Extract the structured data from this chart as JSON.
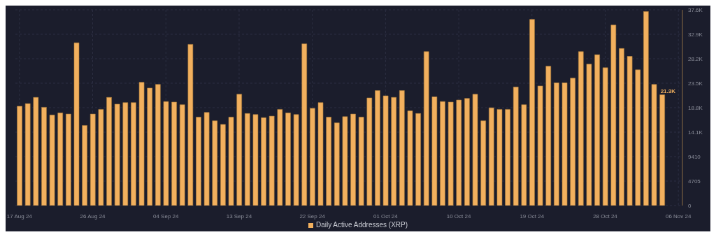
{
  "chart_data": {
    "type": "bar",
    "categories": [
      "17 Aug 24",
      null,
      null,
      null,
      null,
      null,
      null,
      null,
      null,
      "26 Aug 24",
      null,
      null,
      null,
      null,
      null,
      null,
      null,
      null,
      "04 Sep 24",
      null,
      null,
      null,
      null,
      null,
      null,
      null,
      null,
      "13 Sep 24",
      null,
      null,
      null,
      null,
      null,
      null,
      null,
      null,
      "22 Sep 24",
      null,
      null,
      null,
      null,
      null,
      null,
      null,
      null,
      "01 Oct 24",
      null,
      null,
      null,
      null,
      null,
      null,
      null,
      null,
      "10 Oct 24",
      null,
      null,
      null,
      null,
      null,
      null,
      null,
      null,
      "19 Oct 24",
      null,
      null,
      null,
      null,
      null,
      null,
      null,
      null,
      "28 Oct 24",
      null,
      null,
      null,
      null,
      null,
      null,
      null,
      null,
      "06 Nov 24"
    ],
    "series": [
      {
        "name": "Daily Active Addresses (XRP)",
        "color": "#f2b05e",
        "values": [
          19100,
          19600,
          20800,
          18900,
          17400,
          17800,
          17600,
          31300,
          15400,
          17600,
          18500,
          20800,
          19500,
          19800,
          19800,
          23700,
          22600,
          23300,
          20000,
          19900,
          19400,
          31000,
          17000,
          17900,
          16300,
          15600,
          17000,
          21400,
          17700,
          17500,
          16900,
          17200,
          18500,
          17800,
          17500,
          31100,
          18700,
          19800,
          17000,
          15900,
          17100,
          17600,
          17000,
          20700,
          22100,
          21100,
          20800,
          22100,
          18200,
          17700,
          29600,
          20900,
          20000,
          19900,
          20300,
          20600,
          21400,
          16300,
          18800,
          18500,
          18500,
          22800,
          19400,
          35800,
          23000,
          26800,
          23600,
          23600,
          24500,
          29600,
          27200,
          29000,
          26500,
          34700,
          30200,
          28700,
          26100,
          37300,
          23300,
          21300,
          null,
          null
        ],
        "value_labels": [
          null,
          null,
          null,
          null,
          null,
          null,
          null,
          null,
          null,
          null,
          null,
          null,
          null,
          null,
          null,
          null,
          null,
          null,
          null,
          null,
          null,
          null,
          null,
          null,
          null,
          null,
          null,
          null,
          null,
          null,
          null,
          null,
          null,
          null,
          null,
          null,
          null,
          null,
          null,
          null,
          null,
          null,
          null,
          null,
          null,
          null,
          null,
          null,
          null,
          null,
          null,
          null,
          null,
          null,
          null,
          null,
          null,
          null,
          null,
          null,
          null,
          null,
          null,
          null,
          null,
          null,
          null,
          null,
          null,
          null,
          null,
          null,
          null,
          null,
          null,
          null,
          null,
          null,
          null,
          "21.3K",
          null,
          null
        ]
      }
    ],
    "ylim": [
      0,
      37640
    ],
    "yticks": [
      0,
      4705,
      9410,
      {
        "value": 14115,
        "label": "14.1K"
      },
      {
        "value": 18820,
        "label": "18.8K"
      },
      {
        "value": 23525,
        "label": "23.5K"
      },
      {
        "value": 28230,
        "label": "28.2K"
      },
      {
        "value": 32935,
        "label": "32.9K"
      },
      {
        "value": 37640,
        "label": "37.6K"
      }
    ],
    "grid": true,
    "legend": "bottom"
  }
}
